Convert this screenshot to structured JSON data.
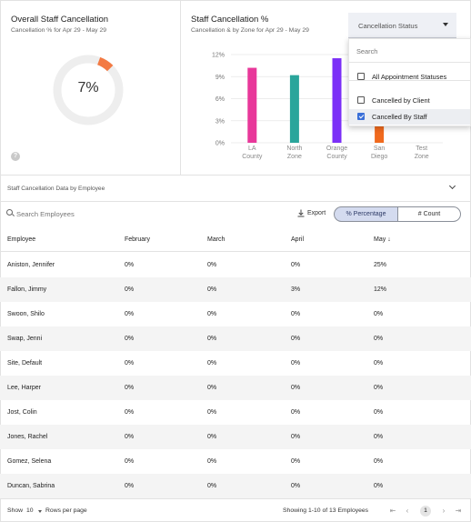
{
  "overall": {
    "title": "Overall Staff Cancellation",
    "subtitle": "Cancellation % for Apr 29 - May 29",
    "percent_label": "7%",
    "donut_value": 0.07,
    "donut_color": "#f37a43",
    "track_color": "#eeeeee"
  },
  "staff_chart": {
    "title": "Staff Cancellation %",
    "subtitle": "Cancellation & by Zone for Apr 29 - May 29"
  },
  "status_select": {
    "label": "Cancellation Status"
  },
  "dropdown": {
    "search_placeholder": "Search",
    "items": [
      {
        "label": "All Appointment Statuses",
        "checked": false,
        "selected": false
      },
      {
        "label": "Cancelled by Client",
        "checked": false,
        "selected": false
      },
      {
        "label": "Cancelled By Staff",
        "checked": true,
        "selected": true
      }
    ]
  },
  "chart_data": {
    "type": "bar",
    "categories": [
      "LA County",
      "North Zone",
      "Orange County",
      "San Diego",
      "Test Zone"
    ],
    "category_lines": [
      [
        "LA",
        "County"
      ],
      [
        "North",
        "Zone"
      ],
      [
        "Orange",
        "County"
      ],
      [
        "San",
        "Diego"
      ],
      [
        "Test",
        "Zone"
      ]
    ],
    "values": [
      10.2,
      9.2,
      11.5,
      2.5,
      0
    ],
    "colors": [
      "#e8389a",
      "#2aa59b",
      "#7b2ff7",
      "#f06a1e",
      "#cccccc"
    ],
    "yticks": [
      "12%",
      "9%",
      "6%",
      "3%",
      "0%"
    ],
    "ytick_values": [
      12,
      9,
      6,
      3,
      0
    ],
    "ylim": [
      0,
      12
    ],
    "grid": true,
    "title": "",
    "xlabel": "",
    "ylabel": ""
  },
  "section": {
    "title": "Staff Cancellation Data by Employee"
  },
  "toolbar": {
    "search_placeholder": "Search Employees",
    "export_label": "Export",
    "pct_label": "% Percentage",
    "count_label": "# Count"
  },
  "table": {
    "headers": [
      "Employee",
      "February",
      "March",
      "April",
      "May"
    ],
    "sort_indicator": "↓",
    "rows": [
      [
        "Aniston, Jennifer",
        "0%",
        "0%",
        "0%",
        "25%"
      ],
      [
        "Fallon, Jimmy",
        "0%",
        "0%",
        "3%",
        "12%"
      ],
      [
        "Swoon, Shilo",
        "0%",
        "0%",
        "0%",
        "0%"
      ],
      [
        "Swap, Jenni",
        "0%",
        "0%",
        "0%",
        "0%"
      ],
      [
        "Site, Default",
        "0%",
        "0%",
        "0%",
        "0%"
      ],
      [
        "Lee, Harper",
        "0%",
        "0%",
        "0%",
        "0%"
      ],
      [
        "Jost, Colin",
        "0%",
        "0%",
        "0%",
        "0%"
      ],
      [
        "Jones, Rachel",
        "0%",
        "0%",
        "0%",
        "0%"
      ],
      [
        "Gomez, Selena",
        "0%",
        "0%",
        "0%",
        "0%"
      ],
      [
        "Duncan, Sabrina",
        "0%",
        "0%",
        "0%",
        "0%"
      ]
    ]
  },
  "footer": {
    "show_label": "Show",
    "rows_per_page_value": "10",
    "rows_per_page_label": "Rows per page",
    "showing_text": "Showing 1-10 of 13 Employees",
    "first_icon": "⇤",
    "prev_icon": "‹",
    "current_page": "1",
    "next_icon": "›",
    "last_icon": "⇥"
  }
}
